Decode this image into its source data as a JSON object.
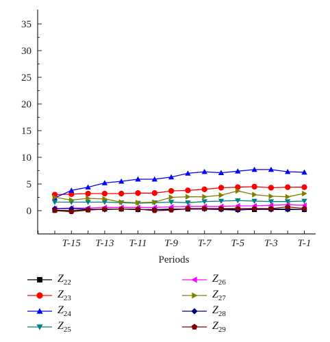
{
  "chart_data": {
    "type": "line",
    "title": "",
    "xlabel": "Periods",
    "ylabel": "",
    "ylim": [
      0,
      35
    ],
    "yticks": [
      "0",
      "5",
      "10",
      "15",
      "20",
      "25",
      "30",
      "35"
    ],
    "x_tick_labels": [
      "T-15",
      "T-13",
      "T-11",
      "T-9",
      "T-7",
      "T-5",
      "T-3",
      "T-1"
    ],
    "x": [
      "T-16",
      "T-15",
      "T-14",
      "T-13",
      "T-12",
      "T-11",
      "T-10",
      "T-9",
      "T-8",
      "T-7",
      "T-6",
      "T-5",
      "T-4",
      "T-3",
      "T-2",
      "T-1"
    ],
    "grid": false,
    "legend_position": "bottom",
    "series": [
      {
        "name": "Z",
        "sub": "22",
        "color": "#000000",
        "marker": "square",
        "values": [
          0.1,
          0.0,
          0.2,
          0.3,
          0.3,
          0.2,
          0.2,
          0.3,
          0.3,
          0.4,
          0.3,
          0.2,
          0.2,
          0.3,
          0.3,
          0.2
        ]
      },
      {
        "name": "Z",
        "sub": "23",
        "color": "#ff0000",
        "marker": "circle",
        "values": [
          3.0,
          3.1,
          3.2,
          3.2,
          3.2,
          3.3,
          3.3,
          3.7,
          3.8,
          4.0,
          4.3,
          4.4,
          4.5,
          4.3,
          4.4,
          4.4
        ]
      },
      {
        "name": "Z",
        "sub": "24",
        "color": "#0000ff",
        "marker": "triangle-up",
        "values": [
          2.4,
          3.8,
          4.4,
          5.2,
          5.5,
          5.9,
          5.9,
          6.3,
          7.0,
          7.3,
          7.1,
          7.4,
          7.7,
          7.7,
          7.3,
          7.2
        ]
      },
      {
        "name": "Z",
        "sub": "25",
        "color": "#008080",
        "marker": "triangle-down",
        "values": [
          1.6,
          1.6,
          1.6,
          1.6,
          1.5,
          1.4,
          1.5,
          1.6,
          1.5,
          1.7,
          1.8,
          1.9,
          1.8,
          1.7,
          1.7,
          1.8
        ]
      },
      {
        "name": "Z",
        "sub": "26",
        "color": "#ff00ff",
        "marker": "triangle-left",
        "values": [
          0.4,
          0.5,
          0.5,
          0.6,
          0.6,
          0.6,
          0.6,
          0.7,
          0.8,
          0.8,
          0.8,
          0.9,
          0.9,
          1.0,
          1.1,
          1.0
        ]
      },
      {
        "name": "Z",
        "sub": "27",
        "color": "#808000",
        "marker": "triangle-right",
        "values": [
          2.5,
          2.0,
          2.3,
          2.2,
          1.6,
          1.5,
          1.6,
          2.5,
          2.6,
          2.6,
          2.9,
          3.7,
          3.0,
          2.7,
          2.6,
          3.2
        ]
      },
      {
        "name": "Z",
        "sub": "28",
        "color": "#000080",
        "marker": "diamond",
        "values": [
          0.4,
          0.4,
          0.3,
          0.2,
          0.3,
          0.2,
          0.2,
          0.2,
          0.3,
          0.3,
          0.2,
          0.1,
          0.3,
          0.2,
          0.2,
          0.2
        ]
      },
      {
        "name": "Z",
        "sub": "29",
        "color": "#800000",
        "marker": "pentagon",
        "values": [
          0.0,
          -0.2,
          0.1,
          0.3,
          0.3,
          0.3,
          0.0,
          0.1,
          0.4,
          0.4,
          0.4,
          0.4,
          0.4,
          0.4,
          0.7,
          0.4
        ]
      }
    ]
  }
}
